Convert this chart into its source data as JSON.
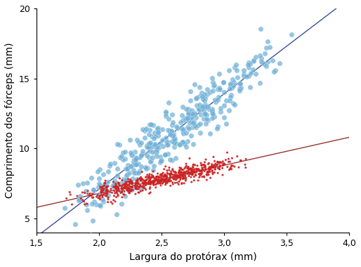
{
  "title": "",
  "xlabel": "Largura do protórax (mm)",
  "ylabel": "Comprimento dos fórceps (mm)",
  "xlim": [
    1.5,
    4.0
  ],
  "ylim": [
    4.0,
    20.0
  ],
  "xticks": [
    1.5,
    2.0,
    2.5,
    3.0,
    3.5,
    4.0
  ],
  "yticks": [
    5,
    10,
    15,
    20
  ],
  "blue_color": "#6aaed6",
  "red_color": "#cc2222",
  "blue_line_color": "#3a4f9e",
  "red_line_color": "#993333",
  "blue_slope": 6.8,
  "blue_intercept": -6.5,
  "red_slope": 2.0,
  "red_intercept": 2.8,
  "seed_blue": 42,
  "seed_red": 123,
  "n_blue": 380,
  "n_red": 650
}
